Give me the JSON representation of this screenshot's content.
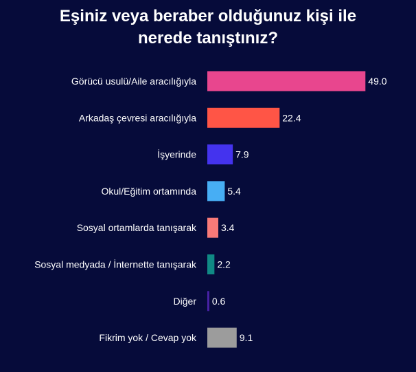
{
  "chart_data": {
    "type": "bar",
    "orientation": "horizontal",
    "title_lines": [
      "Eşiniz veya beraber olduğunuz kişi ile",
      "nerede tanıştınız?"
    ],
    "xlabel": "",
    "ylabel": "",
    "grid": false,
    "xlim": [
      0,
      50
    ],
    "categories": [
      "Görücü usulü/Aile aracılığıyla",
      "Arkadaş çevresi aracılığıyla",
      "İşyerinde",
      "Okul/Eğitim ortamında",
      "Sosyal ortamlarda tanışarak",
      "Sosyal medyada / İnternette tanışarak",
      "Diğer",
      "Fikrim yok / Cevap yok"
    ],
    "values": [
      49.0,
      22.4,
      7.9,
      5.4,
      3.4,
      2.2,
      0.6,
      9.1
    ],
    "value_labels": [
      "49.0",
      "22.4",
      "7.9",
      "5.4",
      "3.4",
      "2.2",
      "0.6",
      "9.1"
    ],
    "colors": [
      "#e8468e",
      "#ff5546",
      "#4433ee",
      "#47aef4",
      "#f87a78",
      "#108a85",
      "#4a22a8",
      "#9c9c9c"
    ]
  }
}
